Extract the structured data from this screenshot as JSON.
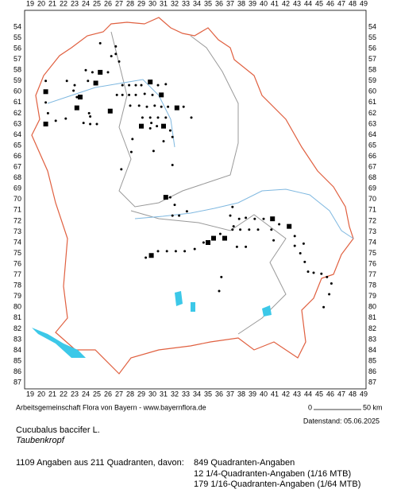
{
  "grid": {
    "columns": [
      19,
      20,
      21,
      22,
      23,
      24,
      25,
      26,
      27,
      28,
      29,
      30,
      31,
      32,
      33,
      34,
      35,
      36,
      37,
      38,
      39,
      40,
      41,
      42,
      43,
      44,
      45,
      46,
      47,
      48,
      49
    ],
    "rows": [
      54,
      55,
      56,
      57,
      58,
      59,
      60,
      61,
      62,
      63,
      64,
      65,
      66,
      67,
      68,
      69,
      70,
      71,
      72,
      73,
      74,
      75,
      76,
      77,
      78,
      79,
      80,
      81,
      82,
      83,
      84,
      85,
      86,
      87
    ]
  },
  "footer": {
    "credit": "Arbeitsgemeinschaft Flora von Bayern - www.bayernflora.de",
    "scale_start": "0",
    "scale_end": "50 km",
    "date": "Datenstand: 05.06.2025"
  },
  "taxon": {
    "name": "Cucubalus baccifer L.",
    "common_name": "Taubenkropf"
  },
  "summary": {
    "total": "1109 Angaben aus 211 Quadranten, davon:",
    "quadrant": "849 Quadranten-Angaben",
    "quarter": "12 1/4-Quadranten-Angaben (1/16 MTB)",
    "sixteenth": "179 1/16-Quadranten-Angaben (1/64 MTB)"
  }
}
